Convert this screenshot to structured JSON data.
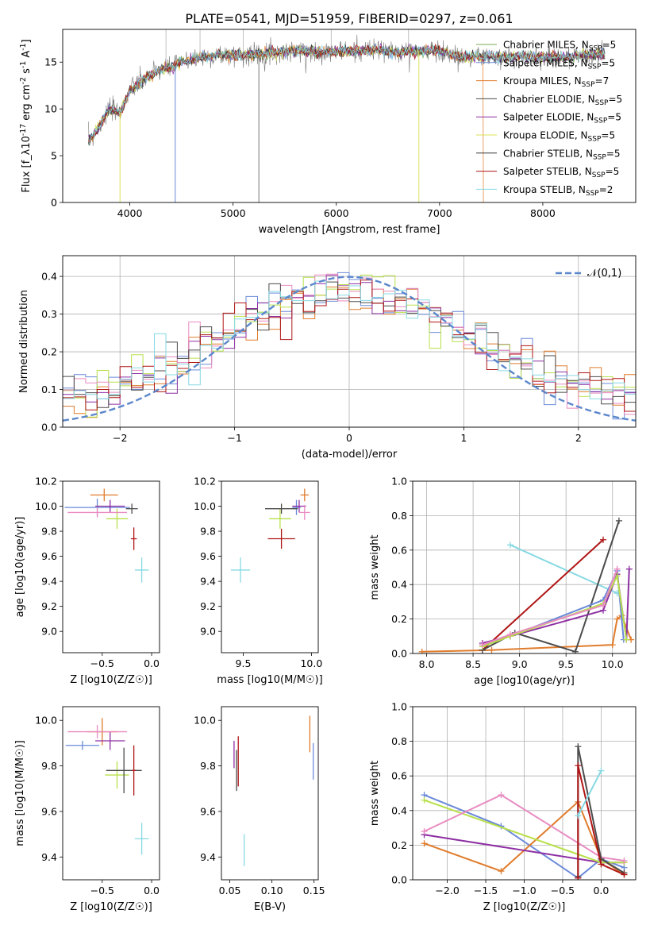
{
  "title": "PLATE=0541, MJD=51959, FIBERID=0297, z=0.061",
  "series_colors": [
    "#6a89d9",
    "#e07c2c",
    "#8e2fa3",
    "#b8e04a",
    "#e98bc1",
    "#4b4b4b",
    "#b01616",
    "#86d9e3",
    "#77aa55",
    "#777777"
  ],
  "chart_data": [
    {
      "type": "line",
      "id": "spectrum",
      "xlabel": "wavelength [Angstrom, rest frame]",
      "ylabel": "Flux [f_λ10^-17 erg cm^-2 s^-1 A^-1]",
      "xlim": [
        3350,
        8900
      ],
      "ylim": [
        0,
        18.5
      ],
      "xticks": [
        4000,
        5000,
        6000,
        7000,
        8000
      ],
      "yticks": [
        0,
        5,
        10,
        15
      ],
      "grid": false,
      "legend_position": "upper right",
      "x_sample": [
        3600,
        3700,
        3800,
        3900,
        4000,
        4100,
        4200,
        4300,
        4400,
        4500,
        4600,
        4700,
        4800,
        4900,
        5000,
        5200,
        5400,
        5600,
        5800,
        6000,
        6200,
        6400,
        6600,
        6800,
        7000,
        7200,
        7400,
        7600,
        7800,
        8000,
        8200,
        8400,
        8600
      ],
      "y_sample": [
        6.5,
        8.0,
        10.0,
        9.5,
        12.0,
        12.8,
        13.6,
        14.2,
        14.4,
        15.0,
        15.3,
        15.5,
        15.6,
        15.8,
        15.7,
        15.8,
        16.0,
        16.2,
        16.1,
        16.1,
        16.2,
        16.3,
        16.0,
        16.2,
        16.2,
        15.6,
        15.6,
        15.5,
        15.6,
        15.5,
        15.5,
        15.8,
        15.8
      ],
      "legend": [
        {
          "name": "Chabrier MILES",
          "nssp": "5",
          "color": "#77aa55"
        },
        {
          "name": "Salpeter MILES",
          "nssp": "5",
          "color": "#6a89d9"
        },
        {
          "name": "Kroupa MILES",
          "nssp": "7",
          "color": "#e07c2c"
        },
        {
          "name": "Chabrier ELODIE",
          "nssp": "5",
          "color": "#4b4b4b"
        },
        {
          "name": "Salpeter ELODIE",
          "nssp": "5",
          "color": "#8e2fa3"
        },
        {
          "name": "Kroupa ELODIE",
          "nssp": "5",
          "color": "#d9e25a"
        },
        {
          "name": "Chabrier STELIB",
          "nssp": "5",
          "color": "#333333"
        },
        {
          "name": "Salpeter STELIB",
          "nssp": "5",
          "color": "#b01616"
        },
        {
          "name": "Kroupa STELIB",
          "nssp": "2",
          "color": "#86d9e3"
        }
      ]
    },
    {
      "type": "histogram",
      "id": "residuals",
      "xlabel": "(data-model)/error",
      "ylabel": "Normed distribution",
      "xlim": [
        -2.5,
        2.5
      ],
      "ylim": [
        0,
        0.455
      ],
      "xticks": [
        -2,
        -1,
        0,
        1,
        2
      ],
      "yticks": [
        0.0,
        0.1,
        0.2,
        0.3,
        0.4
      ],
      "grid": true,
      "legend_position": "upper right",
      "reference_curve": {
        "label": "𝒩(0,1)",
        "mean": 0,
        "sigma": 1,
        "color": "#5b87cc"
      },
      "bin_width": 0.1,
      "bins": [
        -2.5,
        2.5
      ],
      "approx_level": 0.32
    },
    {
      "type": "errorbar",
      "id": "age-vs-Z",
      "xlabel": "Z [log10(Z/Z☉)]",
      "ylabel": "age  [log10(age/yr)]",
      "xlim": [
        -0.9,
        0.08
      ],
      "ylim": [
        8.83,
        10.2
      ],
      "xticks": [
        -0.5,
        0.0
      ],
      "yticks": [
        9.0,
        9.2,
        9.4,
        9.6,
        9.8,
        10.0,
        10.2
      ],
      "points": [
        {
          "x": -0.55,
          "xerr": 0.33,
          "y": 9.99,
          "yerr": 0.07,
          "color": "#6a89d9"
        },
        {
          "x": -0.48,
          "xerr": 0.14,
          "y": 10.09,
          "yerr": 0.05,
          "color": "#e07c2c"
        },
        {
          "x": -0.42,
          "xerr": 0.15,
          "y": 10.0,
          "yerr": 0.05,
          "color": "#8e2fa3"
        },
        {
          "x": -0.35,
          "xerr": 0.11,
          "y": 9.9,
          "yerr": 0.08,
          "color": "#b8e04a"
        },
        {
          "x": -0.55,
          "xerr": 0.3,
          "y": 9.95,
          "yerr": 0.04,
          "color": "#e98bc1"
        },
        {
          "x": -0.2,
          "xerr": 0.06,
          "y": 9.98,
          "yerr": 0.04,
          "color": "#4b4b4b"
        },
        {
          "x": -0.18,
          "xerr": 0.03,
          "y": 9.74,
          "yerr": 0.09,
          "color": "#b01616"
        },
        {
          "x": -0.1,
          "xerr": 0.07,
          "y": 9.49,
          "yerr": 0.1,
          "color": "#86d9e3"
        }
      ]
    },
    {
      "type": "errorbar",
      "id": "age-vs-mass",
      "xlabel": "mass [log10(M/M☉)]",
      "ylabel": "",
      "xlim": [
        9.34,
        10.05
      ],
      "ylim": [
        8.83,
        10.2
      ],
      "xticks": [
        9.5,
        10.0
      ],
      "yticks": [
        9.0,
        9.2,
        9.4,
        9.6,
        9.8,
        10.0,
        10.2
      ],
      "points": [
        {
          "x": 9.89,
          "xerr": 0.03,
          "y": 9.99,
          "yerr": 0.06,
          "color": "#6a89d9"
        },
        {
          "x": 9.95,
          "xerr": 0.03,
          "y": 10.09,
          "yerr": 0.05,
          "color": "#e07c2c"
        },
        {
          "x": 9.91,
          "xerr": 0.05,
          "y": 10.0,
          "yerr": 0.05,
          "color": "#8e2fa3"
        },
        {
          "x": 9.77,
          "xerr": 0.08,
          "y": 9.9,
          "yerr": 0.08,
          "color": "#b8e04a"
        },
        {
          "x": 9.95,
          "xerr": 0.04,
          "y": 9.95,
          "yerr": 0.06,
          "color": "#e98bc1"
        },
        {
          "x": 9.78,
          "xerr": 0.12,
          "y": 9.98,
          "yerr": 0.04,
          "color": "#4b4b4b"
        },
        {
          "x": 9.78,
          "xerr": 0.1,
          "y": 9.74,
          "yerr": 0.08,
          "color": "#b01616"
        },
        {
          "x": 9.48,
          "xerr": 0.07,
          "y": 9.49,
          "yerr": 0.1,
          "color": "#86d9e3"
        }
      ]
    },
    {
      "type": "line",
      "id": "mass-weight-vs-age",
      "xlabel": "age  [log10(age/yr)]",
      "ylabel": "mass weight",
      "xlim": [
        7.85,
        10.25
      ],
      "ylim": [
        0,
        1.0
      ],
      "xticks": [
        8.0,
        8.5,
        9.0,
        9.5,
        10.0
      ],
      "yticks": [
        0.0,
        0.2,
        0.4,
        0.6,
        0.8,
        1.0
      ],
      "grid": true,
      "series": [
        {
          "color": "#86d9e3",
          "x": [
            8.9,
            10.05
          ],
          "y": [
            0.63,
            0.35
          ]
        },
        {
          "color": "#e07c2c",
          "x": [
            7.95,
            8.7,
            10.0,
            10.05,
            10.1,
            10.2
          ],
          "y": [
            0.01,
            0.02,
            0.05,
            0.2,
            0.22,
            0.08
          ]
        },
        {
          "color": "#b01616",
          "x": [
            8.6,
            9.9
          ],
          "y": [
            0.02,
            0.66
          ]
        },
        {
          "color": "#4b4b4b",
          "x": [
            8.6,
            8.95,
            9.6,
            10.07
          ],
          "y": [
            0.02,
            0.12,
            0.01,
            0.77
          ]
        },
        {
          "color": "#6a89d9",
          "x": [
            8.6,
            8.9,
            9.9,
            10.05,
            10.12
          ],
          "y": [
            0.05,
            0.1,
            0.31,
            0.48,
            0.08
          ]
        },
        {
          "color": "#8e2fa3",
          "x": [
            8.6,
            8.9,
            9.9,
            10.05,
            10.15,
            10.18
          ],
          "y": [
            0.06,
            0.1,
            0.25,
            0.46,
            0.08,
            0.49
          ]
        },
        {
          "color": "#b8e04a",
          "x": [
            8.6,
            8.9,
            9.9,
            10.05,
            10.15
          ],
          "y": [
            0.04,
            0.1,
            0.29,
            0.45,
            0.08
          ]
        },
        {
          "color": "#e98bc1",
          "x": [
            8.6,
            8.9,
            9.9,
            10.05
          ],
          "y": [
            0.05,
            0.11,
            0.28,
            0.49
          ]
        }
      ]
    },
    {
      "type": "errorbar",
      "id": "mass-vs-Z",
      "xlabel": "Z [log10(Z/Z☉)]",
      "ylabel": "mass [log10(M/M☉)]",
      "xlim": [
        -0.9,
        0.08
      ],
      "ylim": [
        9.3,
        10.06
      ],
      "xticks": [
        -0.5,
        0.0
      ],
      "yticks": [
        9.4,
        9.6,
        9.8,
        10.0
      ],
      "points": [
        {
          "x": -0.7,
          "xerr": 0.17,
          "y": 9.89,
          "yerr": 0.02,
          "color": "#6a89d9"
        },
        {
          "x": -0.5,
          "xerr": 0.15,
          "y": 9.95,
          "yerr": 0.06,
          "color": "#e07c2c"
        },
        {
          "x": -0.42,
          "xerr": 0.15,
          "y": 9.91,
          "yerr": 0.04,
          "color": "#8e2fa3"
        },
        {
          "x": -0.35,
          "xerr": 0.12,
          "y": 9.76,
          "yerr": 0.06,
          "color": "#b8e04a"
        },
        {
          "x": -0.55,
          "xerr": 0.3,
          "y": 9.95,
          "yerr": 0.03,
          "color": "#e98bc1"
        },
        {
          "x": -0.28,
          "xerr": 0.18,
          "y": 9.78,
          "yerr": 0.1,
          "color": "#4b4b4b"
        },
        {
          "x": -0.18,
          "xerr": 0.02,
          "y": 9.78,
          "yerr": 0.11,
          "color": "#b01616"
        },
        {
          "x": -0.1,
          "xerr": 0.07,
          "y": 9.48,
          "yerr": 0.07,
          "color": "#86d9e3"
        }
      ]
    },
    {
      "type": "errorbar",
      "id": "ebv",
      "xlabel": "E(B-V)",
      "ylabel": "",
      "xlim": [
        0.04,
        0.155
      ],
      "ylim": [
        9.3,
        10.06
      ],
      "xticks": [
        0.05,
        0.1,
        0.15
      ],
      "yticks": [
        9.4,
        9.6,
        9.8,
        10.0
      ],
      "points": [
        {
          "x": 0.055,
          "xerr": 0.0,
          "y": 9.85,
          "yerr": 0.06,
          "color": "#8e2fa3"
        },
        {
          "x": 0.058,
          "xerr": 0.0,
          "y": 9.78,
          "yerr": 0.09,
          "color": "#4b4b4b"
        },
        {
          "x": 0.06,
          "xerr": 0.0,
          "y": 9.82,
          "yerr": 0.11,
          "color": "#b01616"
        },
        {
          "x": 0.067,
          "xerr": 0.0,
          "y": 9.43,
          "yerr": 0.07,
          "color": "#86d9e3"
        },
        {
          "x": 0.145,
          "xerr": 0.0,
          "y": 9.94,
          "yerr": 0.08,
          "color": "#e07c2c"
        },
        {
          "x": 0.149,
          "xerr": 0.0,
          "y": 9.82,
          "yerr": 0.08,
          "color": "#6a89d9"
        }
      ]
    },
    {
      "type": "line",
      "id": "mass-weight-vs-Z",
      "xlabel": "Z [log10(Z/Z☉)]",
      "ylabel": "mass weight",
      "xlim": [
        -2.45,
        0.45
      ],
      "ylim": [
        0,
        1.0
      ],
      "xticks": [
        -2.0,
        -1.5,
        -1.0,
        -0.5,
        0.0
      ],
      "yticks": [
        0.0,
        0.2,
        0.4,
        0.6,
        0.8,
        1.0
      ],
      "grid": true,
      "series": [
        {
          "color": "#6a89d9",
          "x": [
            -2.3,
            -1.3,
            -0.3,
            0.0,
            0.3
          ],
          "y": [
            0.49,
            0.31,
            0.01,
            0.12,
            0.07
          ]
        },
        {
          "color": "#e07c2c",
          "x": [
            -2.3,
            -1.3,
            -0.3,
            0.0,
            0.3
          ],
          "y": [
            0.21,
            0.05,
            0.45,
            0.12,
            0.03
          ]
        },
        {
          "color": "#8e2fa3",
          "x": [
            -2.3,
            0.0,
            0.3
          ],
          "y": [
            0.26,
            0.1,
            0.1
          ]
        },
        {
          "color": "#b8e04a",
          "x": [
            -2.3,
            0.0,
            0.3
          ],
          "y": [
            0.46,
            0.1,
            0.1
          ]
        },
        {
          "color": "#e98bc1",
          "x": [
            -2.3,
            -1.3,
            0.0,
            0.3
          ],
          "y": [
            0.28,
            0.49,
            0.13,
            0.11
          ]
        },
        {
          "color": "#4b4b4b",
          "x": [
            -0.3,
            -0.3,
            0.0,
            0.3
          ],
          "y": [
            0.02,
            0.77,
            0.12,
            0.04
          ]
        },
        {
          "color": "#b01616",
          "x": [
            -0.3,
            -0.3,
            0.0,
            0.3
          ],
          "y": [
            0.01,
            0.66,
            0.09,
            0.03
          ]
        },
        {
          "color": "#86d9e3",
          "x": [
            -0.3,
            0.0
          ],
          "y": [
            0.37,
            0.63
          ]
        }
      ]
    }
  ]
}
